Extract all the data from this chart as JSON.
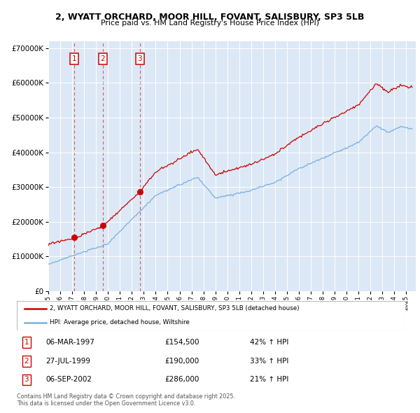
{
  "title": "2, WYATT ORCHARD, MOOR HILL, FOVANT, SALISBURY, SP3 5LB",
  "subtitle": "Price paid vs. HM Land Registry's House Price Index (HPI)",
  "legend_line1": "2, WYATT ORCHARD, MOOR HILL, FOVANT, SALISBURY, SP3 5LB (detached house)",
  "legend_line2": "HPI: Average price, detached house, Wiltshire",
  "transactions": [
    {
      "num": 1,
      "date": "06-MAR-1997",
      "price": 154500,
      "year": 1997.18,
      "change": "42% ↑ HPI"
    },
    {
      "num": 2,
      "date": "27-JUL-1999",
      "price": 190000,
      "year": 1999.57,
      "change": "33% ↑ HPI"
    },
    {
      "num": 3,
      "date": "06-SEP-2002",
      "price": 286000,
      "year": 2002.68,
      "change": "21% ↑ HPI"
    }
  ],
  "footer": "Contains HM Land Registry data © Crown copyright and database right 2025.\nThis data is licensed under the Open Government Licence v3.0.",
  "ylim": [
    0,
    720000
  ],
  "yticks": [
    0,
    100000,
    200000,
    300000,
    400000,
    500000,
    600000,
    700000
  ],
  "xlim_start": 1995.0,
  "xlim_end": 2025.8,
  "plot_bg": "#dce8f5",
  "red_color": "#cc0000",
  "blue_color": "#7aafe0"
}
